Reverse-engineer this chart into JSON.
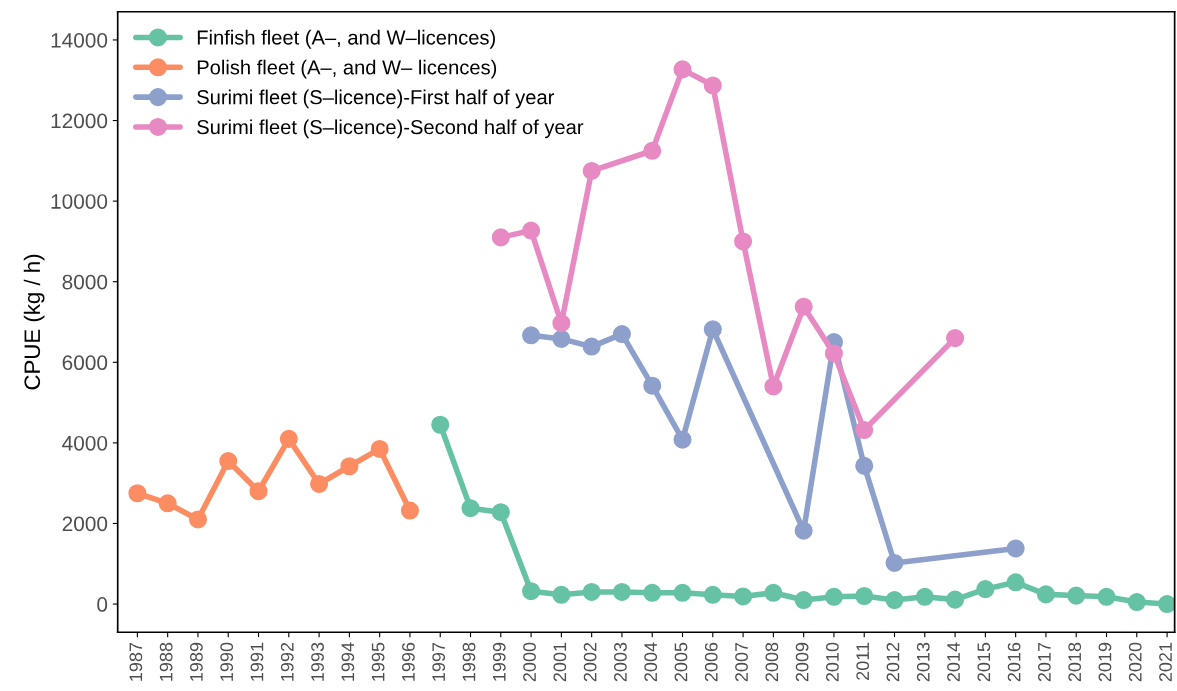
{
  "chart_data": {
    "type": "line",
    "ylabel": "CPUE (kg / h)",
    "xlim": [
      1986.35,
      2021.25
    ],
    "xticks": [
      {
        "value": 1987,
        "label": "1987"
      },
      {
        "value": 1988,
        "label": "1988"
      },
      {
        "value": 1989,
        "label": "1989"
      },
      {
        "value": 1990,
        "label": "1990"
      },
      {
        "value": 1991,
        "label": "1991"
      },
      {
        "value": 1992,
        "label": "1992"
      },
      {
        "value": 1993,
        "label": "1993"
      },
      {
        "value": 1994,
        "label": "1994"
      },
      {
        "value": 1995,
        "label": "1995"
      },
      {
        "value": 1996,
        "label": "1996"
      },
      {
        "value": 1997,
        "label": "1997"
      },
      {
        "value": 1998,
        "label": "1998"
      },
      {
        "value": 1999,
        "label": "1999"
      },
      {
        "value": 2000,
        "label": "2000"
      },
      {
        "value": 2001,
        "label": "2001"
      },
      {
        "value": 2002,
        "label": "2002"
      },
      {
        "value": 2003,
        "label": "2003"
      },
      {
        "value": 2004,
        "label": "2004"
      },
      {
        "value": 2005,
        "label": "2005"
      },
      {
        "value": 2006,
        "label": "2006"
      },
      {
        "value": 2007,
        "label": "2007"
      },
      {
        "value": 2008,
        "label": "2008"
      },
      {
        "value": 2009,
        "label": "2009"
      },
      {
        "value": 2010,
        "label": "2010"
      },
      {
        "value": 2011,
        "label": "2011"
      },
      {
        "value": 2012,
        "label": "2012"
      },
      {
        "value": 2013,
        "label": "2013"
      },
      {
        "value": 2014,
        "label": "2014"
      },
      {
        "value": 2015,
        "label": "2015"
      },
      {
        "value": 2016,
        "label": "2016"
      },
      {
        "value": 2017,
        "label": "2017"
      },
      {
        "value": 2018,
        "label": "2018"
      },
      {
        "value": 2019,
        "label": "2019"
      },
      {
        "value": 2020,
        "label": "2020"
      },
      {
        "value": 2021,
        "label": "2021"
      }
    ],
    "ylim": [
      -700,
      14700
    ],
    "yticks": [
      0,
      2000,
      4000,
      6000,
      8000,
      10000,
      12000,
      14000
    ],
    "grid": false,
    "legend": "top left",
    "marker": "circle",
    "line_style": "solid",
    "series": [
      {
        "name": "Finfish fleet (A–, and W–licences)",
        "color": "#66c2a5",
        "x": [
          1997,
          1998,
          1999,
          2000,
          2001,
          2002,
          2003,
          2004,
          2005,
          2006,
          2007,
          2008,
          2009,
          2010,
          2011,
          2012,
          2013,
          2014,
          2015,
          2016,
          2017,
          2018,
          2019,
          2020,
          2021
        ],
        "values": [
          4450,
          2380,
          2280,
          320,
          230,
          300,
          300,
          280,
          280,
          230,
          190,
          280,
          100,
          180,
          200,
          100,
          180,
          110,
          370,
          540,
          240,
          210,
          180,
          50,
          0
        ]
      },
      {
        "name": "Polish fleet (A–, and W– licences)",
        "color": "#fc8d62",
        "x": [
          1987,
          1988,
          1989,
          1990,
          1991,
          1992,
          1993,
          1994,
          1995,
          1996
        ],
        "values": [
          2750,
          2500,
          2100,
          3550,
          2800,
          4100,
          2980,
          3420,
          3850,
          2320
        ]
      },
      {
        "name": "Surimi fleet (S–licence)-First half of year",
        "color": "#8da0cb",
        "x": [
          2000,
          2001,
          2002,
          2003,
          2004,
          2005,
          2006,
          2009,
          2010,
          2011,
          2012,
          2016
        ],
        "values": [
          6670,
          6580,
          6390,
          6700,
          5420,
          4080,
          6820,
          1820,
          6500,
          3430,
          1020,
          1380
        ]
      },
      {
        "name": "Surimi fleet (S–licence)-Second half of year",
        "color": "#e78ac3",
        "x": [
          1999,
          2000,
          2001,
          2002,
          2004,
          2005,
          2006,
          2007,
          2008,
          2009,
          2010,
          2011,
          2014
        ],
        "values": [
          9100,
          9270,
          6970,
          10750,
          11250,
          13270,
          12870,
          9000,
          5400,
          7380,
          6220,
          4320,
          6600
        ]
      }
    ]
  }
}
